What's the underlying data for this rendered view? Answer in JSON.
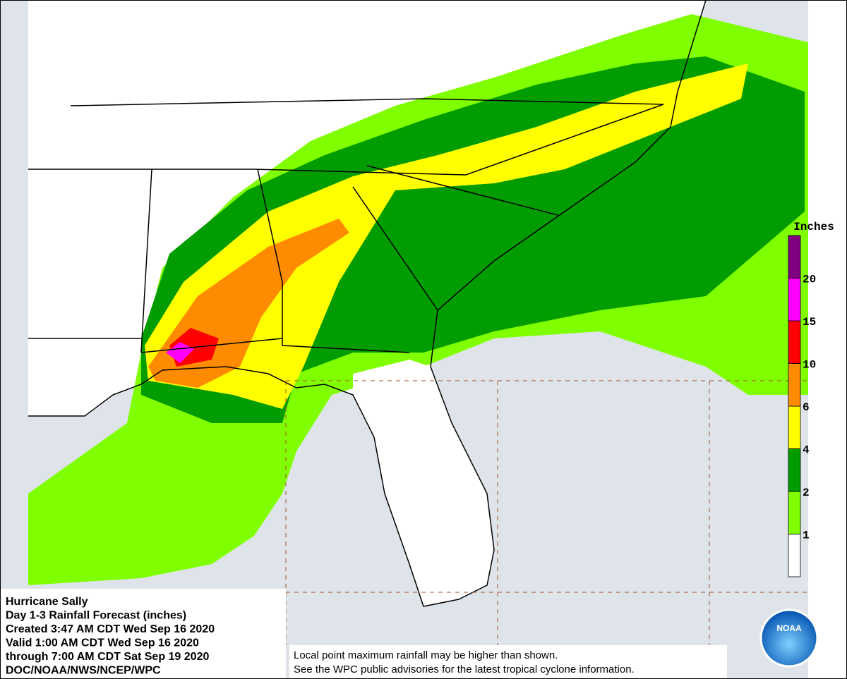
{
  "legend": {
    "title": "Inches",
    "ticks": [
      1,
      2,
      4,
      6,
      10,
      15,
      20
    ],
    "colors": [
      "#ffffff",
      "#7fff00",
      "#009c00",
      "#ffff00",
      "#ff8c00",
      "#ff0000",
      "#ff00ff",
      "#800080"
    ]
  },
  "info": {
    "lines": [
      "Hurricane Sally",
      "Day 1-3 Rainfall Forecast (inches)",
      "Created 3:47 AM CDT Wed Sep 16 2020",
      "Valid 1:00 AM CDT Wed Sep 16 2020",
      "through 7:00 AM CDT Sat Sep 19 2020",
      "DOC/NOAA/NWS/NCEP/WPC"
    ]
  },
  "footnote": {
    "lines": [
      "Local point maximum rainfall may be higher than shown.",
      "See the WPC public advisories for the latest tropical cyclone information."
    ]
  },
  "logo": {
    "text": "NOAA"
  }
}
